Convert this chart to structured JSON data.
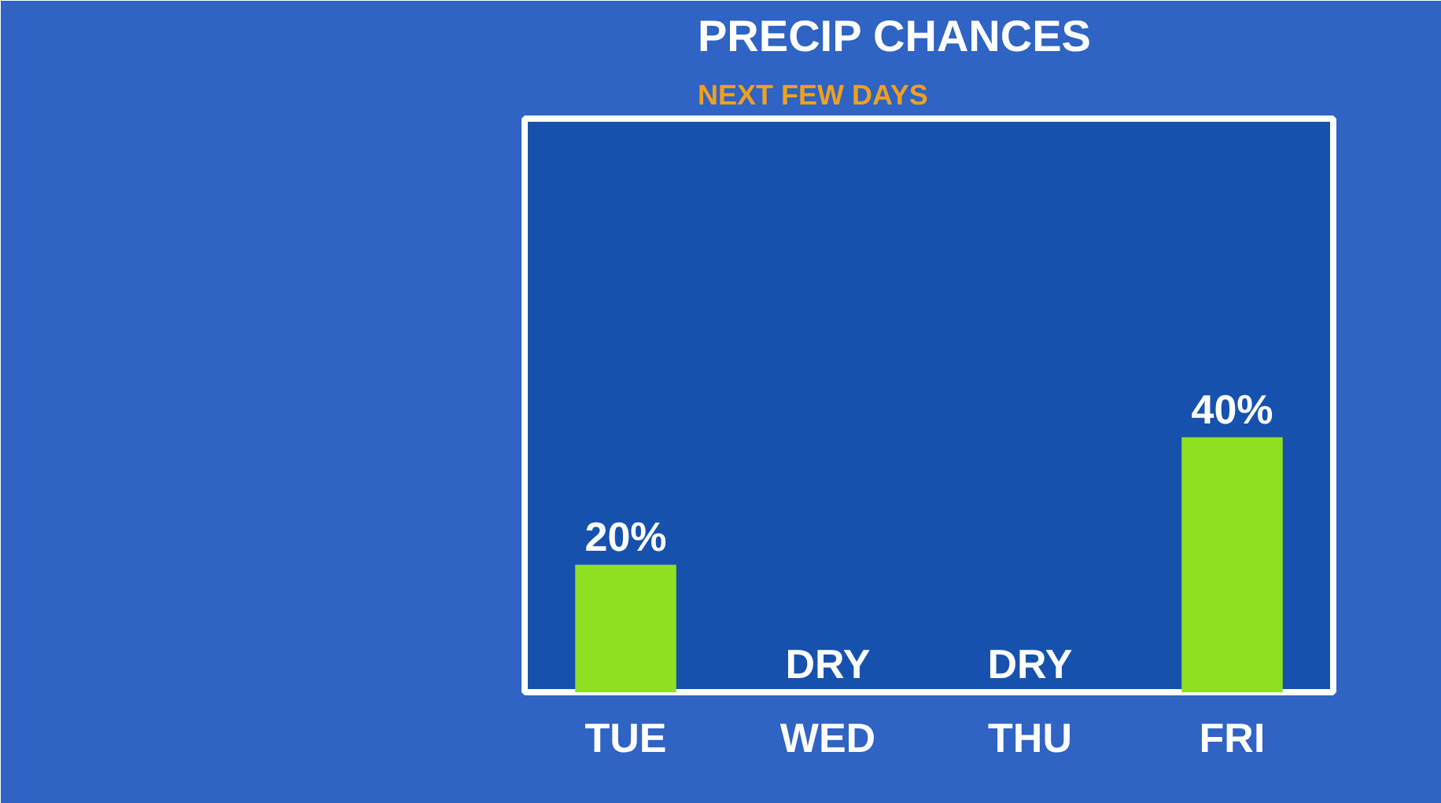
{
  "chart_data": {
    "type": "bar",
    "title": "PRECIP CHANCES",
    "subtitle": "NEXT FEW DAYS",
    "categories": [
      "TUE",
      "WED",
      "THU",
      "FRI"
    ],
    "values": [
      20,
      0,
      0,
      40
    ],
    "value_labels": [
      "20%",
      "DRY",
      "DRY",
      "40%"
    ],
    "color": "#8ee020",
    "grid": false
  }
}
